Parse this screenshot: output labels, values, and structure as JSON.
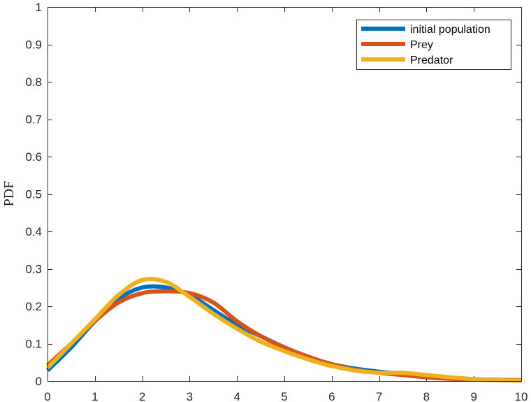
{
  "chart_data": {
    "type": "line",
    "title": "",
    "xlabel": "",
    "ylabel": "PDF",
    "xlim": [
      0,
      10
    ],
    "ylim": [
      0,
      1
    ],
    "xticks": [
      "0",
      "1",
      "2",
      "3",
      "4",
      "5",
      "6",
      "7",
      "8",
      "9",
      "10"
    ],
    "yticks": [
      "0",
      "0.1",
      "0.2",
      "0.3",
      "0.4",
      "0.5",
      "0.6",
      "0.7",
      "0.8",
      "0.9",
      "1"
    ],
    "grid": false,
    "legend_position": "top-right",
    "x": [
      0,
      0.5,
      1,
      1.5,
      2,
      2.5,
      3,
      3.5,
      4,
      4.5,
      5,
      5.5,
      6,
      6.5,
      7,
      7.5,
      8,
      8.5,
      9,
      9.5,
      10
    ],
    "series": [
      {
        "name": "initial population",
        "color": "#0072BD",
        "values": [
          0.028,
          0.09,
          0.16,
          0.22,
          0.25,
          0.25,
          0.23,
          0.19,
          0.15,
          0.12,
          0.09,
          0.065,
          0.045,
          0.033,
          0.025,
          0.018,
          0.012,
          0.008,
          0.005,
          0.003,
          0.002
        ]
      },
      {
        "name": "Prey",
        "color": "#D95319",
        "values": [
          0.042,
          0.1,
          0.16,
          0.21,
          0.235,
          0.24,
          0.235,
          0.21,
          0.16,
          0.12,
          0.09,
          0.065,
          0.045,
          0.03,
          0.022,
          0.016,
          0.01,
          0.006,
          0.004,
          0.003,
          0.002
        ]
      },
      {
        "name": "Predator",
        "color": "#EDB120",
        "values": [
          0.035,
          0.1,
          0.165,
          0.23,
          0.27,
          0.265,
          0.225,
          0.18,
          0.14,
          0.105,
          0.08,
          0.058,
          0.04,
          0.028,
          0.022,
          0.022,
          0.016,
          0.01,
          0.005,
          0.002,
          0.001
        ]
      }
    ]
  }
}
